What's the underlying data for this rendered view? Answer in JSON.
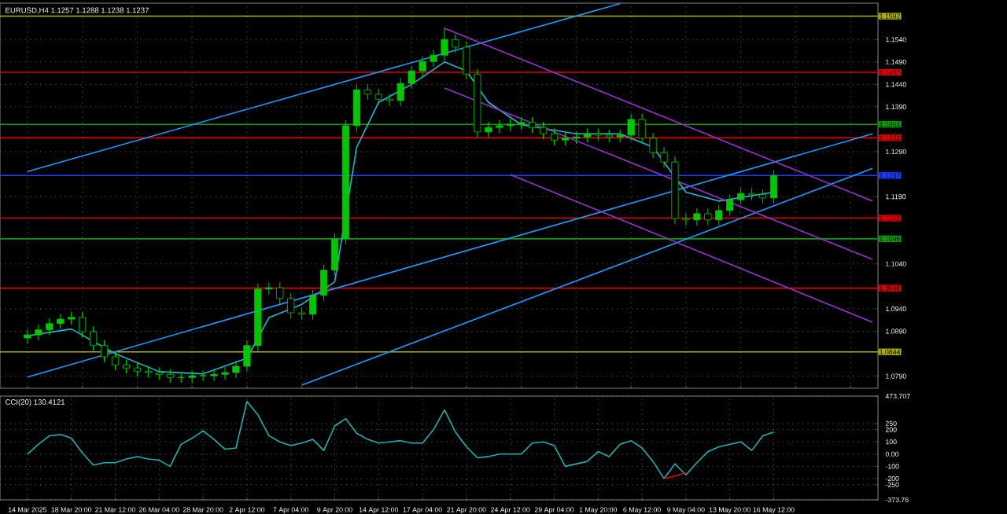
{
  "chart_data": [
    {
      "type": "candlestick",
      "title": "EURUSD,H4  1.1257 1.1288 1.1238 1.1237",
      "color": "#00c800",
      "grid": true,
      "tick_labels": "y",
      "categories": [
        null,
        null,
        null,
        null,
        null,
        null,
        null,
        null,
        null,
        null,
        null,
        null,
        null,
        null,
        null,
        null,
        null,
        null,
        null,
        null,
        null,
        null,
        null,
        null,
        null,
        null,
        null,
        null,
        null,
        null,
        null,
        null,
        null,
        null,
        null,
        null,
        null,
        null,
        null,
        null,
        null,
        null,
        null,
        null,
        null,
        null,
        null,
        null,
        null,
        null,
        null,
        null,
        null,
        null,
        null,
        null,
        null,
        null,
        null,
        null,
        null,
        null,
        null,
        null,
        null,
        null,
        null,
        null,
        null,
        null,
        null,
        null,
        null,
        null,
        null,
        null,
        null,
        null
      ],
      "ylim": [
        1.0763,
        1.1621
      ],
      "yticks": [
        {
          "value": 1.154,
          "label": "1.1540"
        },
        {
          "value": 1.149,
          "label": "1.1490"
        },
        {
          "value": 1.144,
          "label": "1.1440"
        },
        {
          "value": 1.139,
          "label": "1.1390"
        },
        {
          "value": 1.129,
          "label": "1.1290"
        },
        {
          "value": 1.119,
          "label": "1.1190"
        },
        {
          "value": 1.104,
          "label": "1.1040"
        },
        {
          "value": 1.094,
          "label": "1.0940"
        },
        {
          "value": 1.089,
          "label": "1.0890"
        },
        {
          "value": 1.079,
          "label": "1.0790"
        }
      ],
      "ohlc": [
        [
          1.0875,
          1.0894,
          1.0863,
          1.0882
        ],
        [
          1.0882,
          1.0905,
          1.087,
          1.0893
        ],
        [
          1.0893,
          1.0919,
          1.0881,
          1.0907
        ],
        [
          1.0907,
          1.0929,
          1.0895,
          1.0917
        ],
        [
          1.0917,
          1.0933,
          1.0905,
          1.0921
        ],
        [
          1.0921,
          1.0933,
          1.0877,
          1.0889
        ],
        [
          1.0889,
          1.0901,
          1.0846,
          1.0858
        ],
        [
          1.0858,
          1.087,
          1.0821,
          1.0833
        ],
        [
          1.0833,
          1.0845,
          1.0803,
          1.0815
        ],
        [
          1.0815,
          1.0827,
          1.0796,
          1.0808
        ],
        [
          1.0808,
          1.082,
          1.0789,
          1.0801
        ],
        [
          1.0801,
          1.0813,
          1.0786,
          1.0798
        ],
        [
          1.0798,
          1.081,
          1.0782,
          1.0794
        ],
        [
          1.0794,
          1.0806,
          1.0775,
          1.0787
        ],
        [
          1.0787,
          1.0799,
          1.0775,
          1.0787
        ],
        [
          1.0787,
          1.0803,
          1.0775,
          1.0791
        ],
        [
          1.0791,
          1.0803,
          1.0779,
          1.0791
        ],
        [
          1.0791,
          1.0806,
          1.0779,
          1.0794
        ],
        [
          1.0794,
          1.081,
          1.0782,
          1.0798
        ],
        [
          1.0798,
          1.0824,
          1.0786,
          1.0812
        ],
        [
          1.0812,
          1.087,
          1.08,
          1.0858
        ],
        [
          1.0858,
          1.0996,
          1.0846,
          1.0984
        ],
        [
          1.0984,
          1.0999,
          1.0972,
          1.0987
        ],
        [
          1.0987,
          1.0999,
          1.0951,
          1.0963
        ],
        [
          1.0963,
          1.0975,
          1.0919,
          1.0931
        ],
        [
          1.0931,
          1.0943,
          1.0916,
          1.0928
        ],
        [
          1.0928,
          1.0982,
          1.0916,
          1.097
        ],
        [
          1.097,
          1.1038,
          1.0958,
          1.1026
        ],
        [
          1.1026,
          1.1108,
          1.1014,
          1.1096
        ],
        [
          1.1096,
          1.136,
          1.1084,
          1.1348
        ],
        [
          1.1348,
          1.144,
          1.1336,
          1.1428
        ],
        [
          1.1428,
          1.144,
          1.1406,
          1.1418
        ],
        [
          1.1418,
          1.143,
          1.1395,
          1.1407
        ],
        [
          1.1407,
          1.1419,
          1.1392,
          1.1404
        ],
        [
          1.1404,
          1.1454,
          1.1392,
          1.1442
        ],
        [
          1.1442,
          1.1482,
          1.143,
          1.147
        ],
        [
          1.147,
          1.1503,
          1.1458,
          1.1491
        ],
        [
          1.1491,
          1.1517,
          1.1479,
          1.1505
        ],
        [
          1.1505,
          1.1565,
          1.1493,
          1.154
        ],
        [
          1.154,
          1.1552,
          1.1511,
          1.1523
        ],
        [
          1.1523,
          1.1535,
          1.1451,
          1.1463
        ],
        [
          1.1463,
          1.1475,
          1.1322,
          1.1334
        ],
        [
          1.1334,
          1.1356,
          1.1322,
          1.1344
        ],
        [
          1.1344,
          1.136,
          1.1332,
          1.1348
        ],
        [
          1.1348,
          1.1363,
          1.1336,
          1.1351
        ],
        [
          1.1351,
          1.1367,
          1.1339,
          1.1355
        ],
        [
          1.1355,
          1.1367,
          1.1332,
          1.1344
        ],
        [
          1.1344,
          1.1356,
          1.1318,
          1.133
        ],
        [
          1.133,
          1.1342,
          1.1304,
          1.1316
        ],
        [
          1.1316,
          1.1332,
          1.1304,
          1.132
        ],
        [
          1.132,
          1.1335,
          1.1308,
          1.1323
        ],
        [
          1.1323,
          1.1342,
          1.1311,
          1.133
        ],
        [
          1.133,
          1.1342,
          1.1315,
          1.1327
        ],
        [
          1.1327,
          1.1339,
          1.1311,
          1.1323
        ],
        [
          1.1323,
          1.1339,
          1.1311,
          1.1327
        ],
        [
          1.1327,
          1.1374,
          1.1315,
          1.1362
        ],
        [
          1.1362,
          1.1374,
          1.1308,
          1.132
        ],
        [
          1.132,
          1.1332,
          1.1276,
          1.1288
        ],
        [
          1.1288,
          1.13,
          1.1255,
          1.1267
        ],
        [
          1.1267,
          1.1279,
          1.1129,
          1.1141
        ],
        [
          1.1141,
          1.1153,
          1.1126,
          1.1138
        ],
        [
          1.1138,
          1.1164,
          1.1126,
          1.1152
        ],
        [
          1.1152,
          1.1164,
          1.1126,
          1.1138
        ],
        [
          1.1138,
          1.1171,
          1.1126,
          1.1159
        ],
        [
          1.1159,
          1.1195,
          1.1147,
          1.1183
        ],
        [
          1.1183,
          1.1209,
          1.1171,
          1.1197
        ],
        [
          1.1197,
          1.1209,
          1.1182,
          1.1194
        ],
        [
          1.1194,
          1.1206,
          1.1175,
          1.1187
        ],
        [
          1.1187,
          1.1249,
          1.1175,
          1.1237
        ],
        null,
        null,
        null,
        null,
        null,
        null,
        null,
        null,
        null
      ],
      "series": [
        {
          "type": "line",
          "color": "#20b8d0",
          "values": [
            1.088,
            null,
            null,
            null,
            1.0895,
            null,
            null,
            null,
            1.084,
            null,
            null,
            null,
            1.08,
            null,
            null,
            null,
            1.0795,
            null,
            null,
            null,
            1.083,
            null,
            1.092,
            null,
            null,
            1.095,
            null,
            null,
            1.1,
            null,
            1.13,
            null,
            1.14,
            null,
            null,
            1.144,
            null,
            null,
            1.149,
            null,
            1.147,
            null,
            1.14,
            null,
            null,
            1.135,
            null,
            null,
            null,
            null,
            1.133,
            null,
            null,
            null,
            1.133,
            null,
            null,
            1.13,
            null,
            null,
            1.12,
            null,
            null,
            1.118,
            null,
            null,
            null,
            null,
            1.12,
            null,
            null,
            null,
            null,
            null,
            null,
            null,
            null,
            null
          ]
        },
        {
          "type": "line",
          "color": "#1e9bff",
          "values": [
            1.1246,
            null,
            null,
            null,
            null,
            null,
            null,
            null,
            null,
            null,
            null,
            null,
            null,
            null,
            null,
            null,
            null,
            null,
            null,
            null,
            null,
            null,
            null,
            null,
            null,
            null,
            null,
            null,
            null,
            null,
            null,
            null,
            null,
            null,
            null,
            null,
            null,
            null,
            null,
            null,
            null,
            null,
            null,
            null,
            null,
            null,
            null,
            null,
            null,
            null,
            null,
            null,
            null,
            null,
            1.162,
            null,
            null,
            null,
            null,
            null,
            null,
            null,
            null,
            null,
            null,
            null,
            null,
            null,
            null,
            null,
            null,
            null,
            null,
            null,
            null,
            null,
            null,
            null
          ]
        },
        {
          "type": "line",
          "color": "#1e9bff",
          "values": [
            1.0788,
            null,
            null,
            null,
            null,
            null,
            null,
            null,
            null,
            null,
            null,
            null,
            null,
            null,
            null,
            null,
            null,
            null,
            null,
            null,
            null,
            null,
            null,
            null,
            null,
            null,
            null,
            null,
            null,
            null,
            null,
            null,
            null,
            null,
            null,
            null,
            null,
            null,
            null,
            null,
            null,
            null,
            null,
            null,
            null,
            null,
            null,
            null,
            null,
            null,
            null,
            null,
            null,
            null,
            null,
            null,
            null,
            null,
            null,
            null,
            null,
            null,
            null,
            null,
            null,
            null,
            null,
            null,
            null,
            null,
            null,
            null,
            null,
            null,
            null,
            null,
            null,
            1.133
          ]
        },
        {
          "type": "line",
          "color": "#1e9bff",
          "values": [
            null,
            null,
            null,
            null,
            null,
            null,
            null,
            null,
            null,
            null,
            null,
            null,
            null,
            null,
            null,
            null,
            null,
            null,
            null,
            null,
            null,
            null,
            null,
            null,
            null,
            1.077,
            null,
            null,
            null,
            null,
            null,
            null,
            null,
            null,
            null,
            null,
            null,
            null,
            null,
            null,
            null,
            null,
            null,
            null,
            null,
            null,
            null,
            null,
            null,
            null,
            null,
            null,
            null,
            null,
            null,
            null,
            null,
            null,
            null,
            null,
            null,
            null,
            null,
            null,
            null,
            null,
            null,
            null,
            null,
            null,
            null,
            null,
            null,
            null,
            null,
            null,
            null,
            1.1253
          ]
        },
        {
          "type": "line",
          "color": "#9932cc",
          "values": [
            null,
            null,
            null,
            null,
            null,
            null,
            null,
            null,
            null,
            null,
            null,
            null,
            null,
            null,
            null,
            null,
            null,
            null,
            null,
            null,
            null,
            null,
            null,
            null,
            null,
            null,
            null,
            null,
            null,
            null,
            null,
            null,
            null,
            null,
            null,
            null,
            null,
            null,
            1.1565,
            null,
            null,
            null,
            null,
            null,
            null,
            null,
            null,
            null,
            null,
            null,
            null,
            null,
            null,
            null,
            null,
            null,
            null,
            null,
            null,
            null,
            null,
            null,
            null,
            null,
            null,
            null,
            null,
            null,
            null,
            null,
            null,
            null,
            null,
            null,
            null,
            null,
            null,
            1.118
          ]
        },
        {
          "type": "line",
          "color": "#9932cc",
          "values": [
            null,
            null,
            null,
            null,
            null,
            null,
            null,
            null,
            null,
            null,
            null,
            null,
            null,
            null,
            null,
            null,
            null,
            null,
            null,
            null,
            null,
            null,
            null,
            null,
            null,
            null,
            null,
            null,
            null,
            null,
            null,
            null,
            null,
            null,
            null,
            null,
            null,
            null,
            1.1432,
            null,
            null,
            null,
            null,
            null,
            null,
            null,
            null,
            null,
            null,
            null,
            null,
            null,
            null,
            null,
            null,
            null,
            null,
            null,
            null,
            null,
            null,
            null,
            null,
            null,
            null,
            null,
            null,
            null,
            null,
            null,
            null,
            null,
            null,
            null,
            null,
            null,
            null,
            1.105
          ]
        },
        {
          "type": "line",
          "color": "#9932cc",
          "values": [
            null,
            null,
            null,
            null,
            null,
            null,
            null,
            null,
            null,
            null,
            null,
            null,
            null,
            null,
            null,
            null,
            null,
            null,
            null,
            null,
            null,
            null,
            null,
            null,
            null,
            null,
            null,
            null,
            null,
            null,
            null,
            null,
            null,
            null,
            null,
            null,
            null,
            null,
            null,
            null,
            null,
            null,
            null,
            null,
            1.1239,
            null,
            null,
            null,
            null,
            null,
            null,
            null,
            null,
            null,
            null,
            null,
            null,
            null,
            null,
            null,
            null,
            null,
            null,
            null,
            null,
            null,
            null,
            null,
            null,
            null,
            null,
            null,
            null,
            null,
            null,
            null,
            null,
            1.091
          ]
        }
      ],
      "ref_lines": [
        {
          "axis": "y",
          "value": 1.1592,
          "label": "1.1592",
          "color": "#b0b000"
        },
        {
          "axis": "y",
          "value": 1.1467,
          "label": "1.1467",
          "color": "#e00000"
        },
        {
          "axis": "y",
          "value": 1.1351,
          "label": "1.1351",
          "color": "#00a000"
        },
        {
          "axis": "y",
          "value": 1.1321,
          "label": "1.1321",
          "color": "#e00000"
        },
        {
          "axis": "y",
          "value": 1.1237,
          "label": "1.1237",
          "color": "#1c3cff"
        },
        {
          "axis": "y",
          "value": 1.1142,
          "label": "1.1142",
          "color": "#e00000"
        },
        {
          "axis": "y",
          "value": 1.1096,
          "label": "1.1096",
          "color": "#00a000"
        },
        {
          "axis": "y",
          "value": 1.0986,
          "label": "1.0986",
          "color": "#e00000"
        },
        {
          "axis": "y",
          "value": 1.0844,
          "label": "1.0844",
          "color": "#b0b000"
        }
      ]
    },
    {
      "type": "line",
      "title": "CCI(20) 130.4121",
      "grid": true,
      "categories": [
        "14 Mar 2025",
        null,
        null,
        null,
        "18 Mar 20:00",
        null,
        null,
        null,
        "21 Mar 12:00",
        null,
        null,
        null,
        "26 Mar 04:00",
        null,
        null,
        null,
        "28 Mar 20:00",
        null,
        null,
        null,
        "2 Apr 12:00",
        null,
        null,
        null,
        "7 Apr 04:00",
        null,
        null,
        null,
        "9 Apr 20:00",
        null,
        null,
        null,
        "14 Apr 12:00",
        null,
        null,
        null,
        "17 Apr 04:00",
        null,
        null,
        null,
        "21 Apr 20:00",
        null,
        null,
        null,
        "24 Apr 12:00",
        null,
        null,
        null,
        "29 Apr 04:00",
        null,
        null,
        null,
        "1 May 20:00",
        null,
        null,
        null,
        "6 May 12:00",
        null,
        null,
        null,
        "9 May 04:00",
        null,
        null,
        null,
        "13 May 20:00",
        null,
        null,
        null,
        "16 May 12:00",
        null,
        null,
        null,
        null,
        null,
        null,
        null,
        null,
        null
      ],
      "ylim": [
        -373.76,
        473.707
      ],
      "yticks": [
        {
          "value": 473.707,
          "label": "473.707"
        },
        250,
        200,
        100,
        {
          "value": 0,
          "label": "0.00"
        },
        -100,
        -200,
        -250,
        {
          "value": -373.76,
          "label": "-373.76"
        }
      ],
      "series": [
        {
          "color": "#20b0b0",
          "values": [
            0,
            80,
            150,
            160,
            130,
            10,
            -90,
            -70,
            -70,
            -40,
            -20,
            -40,
            -50,
            -100,
            80,
            130,
            190,
            120,
            40,
            50,
            430,
            320,
            150,
            100,
            70,
            90,
            120,
            30,
            230,
            290,
            170,
            120,
            90,
            100,
            110,
            90,
            90,
            200,
            360,
            180,
            60,
            -30,
            -20,
            0,
            0,
            0,
            90,
            100,
            70,
            -100,
            -80,
            -60,
            20,
            -20,
            80,
            110,
            50,
            -60,
            -200,
            -80,
            -170,
            -70,
            20,
            60,
            80,
            100,
            30,
            150,
            180,
            null,
            null,
            null,
            null,
            null,
            null,
            null,
            null,
            null
          ]
        },
        {
          "color": "#e00000",
          "values": [
            null,
            null,
            null,
            null,
            null,
            null,
            null,
            null,
            null,
            null,
            null,
            null,
            null,
            null,
            null,
            null,
            null,
            null,
            null,
            null,
            null,
            null,
            null,
            null,
            null,
            null,
            null,
            null,
            null,
            null,
            null,
            null,
            null,
            null,
            null,
            null,
            null,
            null,
            null,
            null,
            null,
            null,
            null,
            null,
            null,
            null,
            null,
            null,
            null,
            null,
            null,
            null,
            null,
            null,
            null,
            null,
            null,
            null,
            -200,
            -180,
            -150,
            null,
            null,
            null,
            null,
            null,
            null,
            null,
            null,
            null,
            null,
            null,
            null,
            null,
            null,
            null,
            null,
            null
          ]
        }
      ]
    }
  ]
}
